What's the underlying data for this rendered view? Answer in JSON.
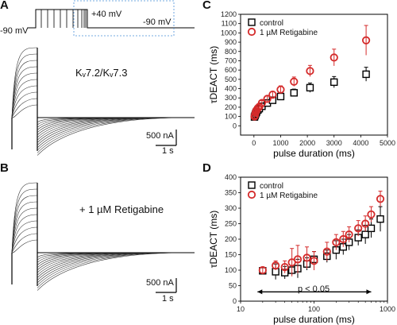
{
  "panels": {
    "A": {
      "letter": "A",
      "v_hold_left": "-90 mV",
      "v_step": "+40 mV",
      "v_hold_right": "-90 mV",
      "channel": "Kᵥ7.2/Kᵥ7.3",
      "scale_current": "500 nA",
      "scale_time": "1 s"
    },
    "B": {
      "letter": "B",
      "condition": "+ 1 µM Retigabine",
      "scale_current": "500 nA",
      "scale_time": "1 s"
    },
    "C": {
      "letter": "C"
    },
    "D": {
      "letter": "D",
      "annotation": "p < 0.05"
    }
  },
  "colors": {
    "control": "#000000",
    "retigabine": "#d42a2a",
    "dotted_box": "#4a90d9"
  },
  "chart_data": [
    {
      "type": "scatter",
      "panel": "C",
      "ylabel": "τDEACT (ms)",
      "xlabel": "pulse duration (ms)",
      "xlim": [
        -500,
        5000
      ],
      "ylim": [
        -100,
        1200
      ],
      "xticks": [
        0,
        1000,
        2000,
        3000,
        4000,
        5000
      ],
      "yticks": [
        0,
        100,
        200,
        300,
        400,
        500,
        600,
        700,
        800,
        900,
        1000,
        1100,
        1200
      ],
      "legend": "top-left",
      "series": [
        {
          "name": "control",
          "marker": "square",
          "x": [
            20,
            40,
            60,
            80,
            100,
            150,
            200,
            300,
            500,
            700,
            1000,
            1500,
            2100,
            3000,
            4200
          ],
          "y": [
            95,
            110,
            125,
            140,
            150,
            170,
            185,
            210,
            245,
            275,
            315,
            355,
            410,
            470,
            555
          ],
          "err": [
            15,
            15,
            15,
            15,
            15,
            18,
            18,
            20,
            25,
            30,
            35,
            40,
            50,
            60,
            75
          ]
        },
        {
          "name": "1 µM Retigabine",
          "marker": "circle",
          "x": [
            20,
            40,
            60,
            80,
            100,
            150,
            200,
            300,
            500,
            700,
            1000,
            1500,
            2100,
            3000,
            4200
          ],
          "y": [
            100,
            115,
            140,
            155,
            170,
            190,
            205,
            245,
            290,
            335,
            390,
            475,
            590,
            735,
            920
          ],
          "err": [
            15,
            15,
            18,
            18,
            20,
            20,
            22,
            25,
            30,
            35,
            40,
            50,
            60,
            90,
            160
          ]
        }
      ]
    },
    {
      "type": "scatter",
      "panel": "D",
      "ylabel": "τDEACT (ms)",
      "xlabel": "pulse duration (ms)",
      "xscale": "log",
      "xlim": [
        10,
        1000
      ],
      "ylim": [
        0,
        400
      ],
      "xticks": [
        10,
        100,
        1000
      ],
      "yticks": [
        0,
        50,
        100,
        150,
        200,
        250,
        300,
        350,
        400
      ],
      "legend": "top-left",
      "series": [
        {
          "name": "control",
          "marker": "square",
          "x": [
            20,
            30,
            40,
            50,
            60,
            80,
            100,
            150,
            200,
            250,
            300,
            400,
            500,
            600,
            800
          ],
          "y": [
            98,
            95,
            92,
            100,
            105,
            120,
            135,
            145,
            165,
            175,
            190,
            205,
            215,
            235,
            265
          ],
          "err": [
            10,
            25,
            20,
            15,
            30,
            20,
            25,
            20,
            30,
            25,
            25,
            25,
            30,
            30,
            40
          ]
        },
        {
          "name": "1 µM Retigabine",
          "marker": "circle",
          "x": [
            20,
            30,
            40,
            50,
            60,
            80,
            100,
            150,
            200,
            250,
            300,
            400,
            500,
            600,
            800
          ],
          "y": [
            100,
            115,
            110,
            125,
            135,
            140,
            130,
            160,
            190,
            200,
            215,
            235,
            250,
            280,
            330
          ],
          "err": [
            10,
            15,
            20,
            45,
            45,
            35,
            30,
            30,
            25,
            25,
            25,
            25,
            25,
            25,
            25
          ]
        }
      ]
    }
  ]
}
